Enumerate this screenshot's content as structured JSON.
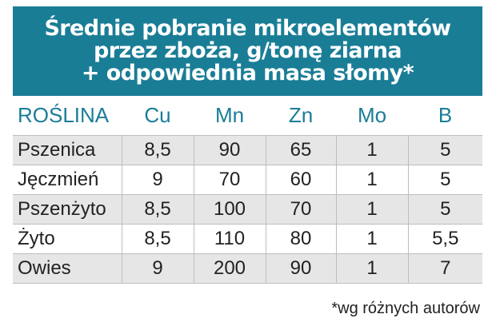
{
  "title": {
    "lines": [
      "Średnie pobranie mikroelementów",
      "przez zboża, g/tonę ziarna",
      "+ odpowiednia masa słomy*"
    ]
  },
  "table": {
    "headers": [
      "ROŚLINA",
      "Cu",
      "Mn",
      "Zn",
      "Mo",
      "B"
    ],
    "rows": [
      [
        "Pszenica",
        "8,5",
        "90",
        "65",
        "1",
        "5"
      ],
      [
        "Jęczmień",
        "9",
        "70",
        "60",
        "1",
        "5"
      ],
      [
        "Pszenżyto",
        "8,5",
        "100",
        "70",
        "1",
        "5"
      ],
      [
        "Żyto",
        "8,5",
        "110",
        "80",
        "1",
        "5,5"
      ],
      [
        "Owies",
        "9",
        "200",
        "90",
        "1",
        "7"
      ]
    ]
  },
  "footnote": "*wg różnych autorów",
  "colors": {
    "header_background": "#1a7d96",
    "header_text": "#ffffff",
    "column_header_text": "#1a7d96",
    "row_shading": "#e6e6e6"
  }
}
